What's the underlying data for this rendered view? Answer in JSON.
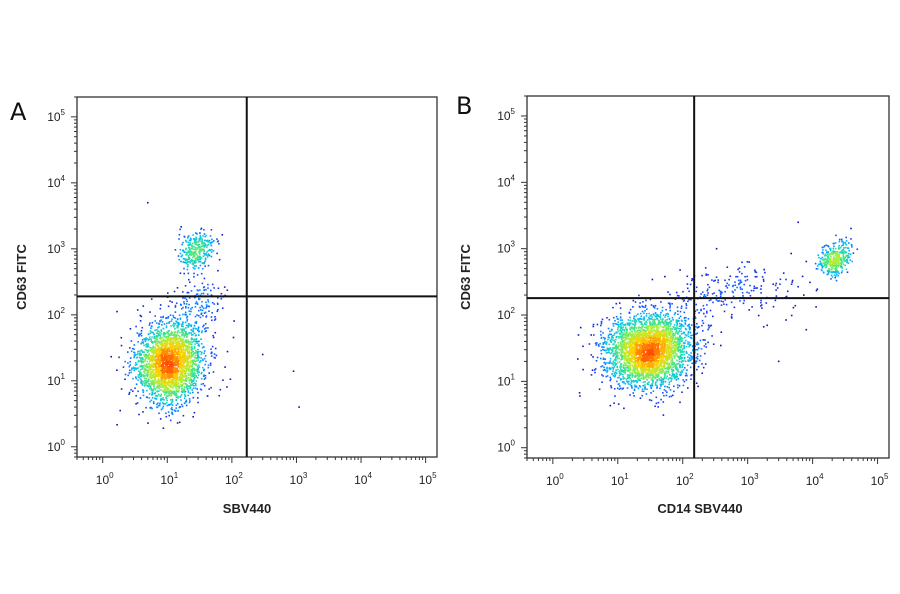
{
  "chart_data": [
    {
      "type": "scatter",
      "panel_label": "A",
      "xlabel": "SBV440",
      "ylabel": "CD63 FITC",
      "x_scale": "log",
      "y_scale": "log",
      "xlim": [
        0.4,
        150000
      ],
      "ylim": [
        0.7,
        200000
      ],
      "x_ticks": [
        1,
        10,
        100,
        1000,
        10000,
        100000
      ],
      "y_ticks": [
        1,
        10,
        100,
        1000,
        10000,
        100000
      ],
      "x_tick_labels": [
        "10^0",
        "10^1",
        "10^2",
        "10^3",
        "10^4",
        "10^5"
      ],
      "y_tick_labels": [
        "10^0",
        "10^1",
        "10^2",
        "10^3",
        "10^4",
        "10^5"
      ],
      "quadrant_gate": {
        "x": 170,
        "y": 190
      },
      "grid": false,
      "colormap": [
        "#00008b",
        "#1e40ff",
        "#00b4ff",
        "#29e0a0",
        "#a8f03a",
        "#ffd000",
        "#ff4a00"
      ],
      "clusters": [
        {
          "center": [
            11,
            18
          ],
          "spread": [
            0.26,
            0.3
          ],
          "count": 2600
        },
        {
          "center": [
            28,
            900
          ],
          "spread": [
            0.14,
            0.13
          ],
          "count": 320
        },
        {
          "center": [
            30,
            150
          ],
          "spread": [
            0.2,
            0.18
          ],
          "count": 130
        }
      ],
      "scattered_points": [
        [
          300,
          25
        ],
        [
          1100,
          4
        ],
        [
          900,
          14
        ],
        [
          5,
          5000
        ]
      ]
    },
    {
      "type": "scatter",
      "panel_label": "B",
      "xlabel": "CD14 SBV440",
      "ylabel": "CD63 FITC",
      "x_scale": "log",
      "y_scale": "log",
      "xlim": [
        0.4,
        150000
      ],
      "ylim": [
        0.7,
        200000
      ],
      "x_ticks": [
        1,
        10,
        100,
        1000,
        10000,
        100000
      ],
      "y_ticks": [
        1,
        10,
        100,
        1000,
        10000,
        100000
      ],
      "x_tick_labels": [
        "10^0",
        "10^1",
        "10^2",
        "10^3",
        "10^4",
        "10^5"
      ],
      "y_tick_labels": [
        "10^0",
        "10^1",
        "10^2",
        "10^3",
        "10^4",
        "10^5"
      ],
      "quadrant_gate": {
        "x": 150,
        "y": 180
      },
      "grid": false,
      "colormap": [
        "#00008b",
        "#1e40ff",
        "#00b4ff",
        "#29e0a0",
        "#a8f03a",
        "#ffd000",
        "#ff4a00"
      ],
      "clusters": [
        {
          "center": [
            30,
            28
          ],
          "spread": [
            0.33,
            0.27
          ],
          "count": 3200
        },
        {
          "center": [
            22000,
            650
          ],
          "spread": [
            0.12,
            0.11
          ],
          "count": 380
        },
        {
          "center": [
            600,
            220
          ],
          "spread": [
            0.55,
            0.22
          ],
          "count": 220
        }
      ],
      "scattered_points": [
        [
          6000,
          2500
        ],
        [
          2000,
          70
        ],
        [
          8000,
          60
        ],
        [
          3000,
          20
        ]
      ]
    }
  ]
}
